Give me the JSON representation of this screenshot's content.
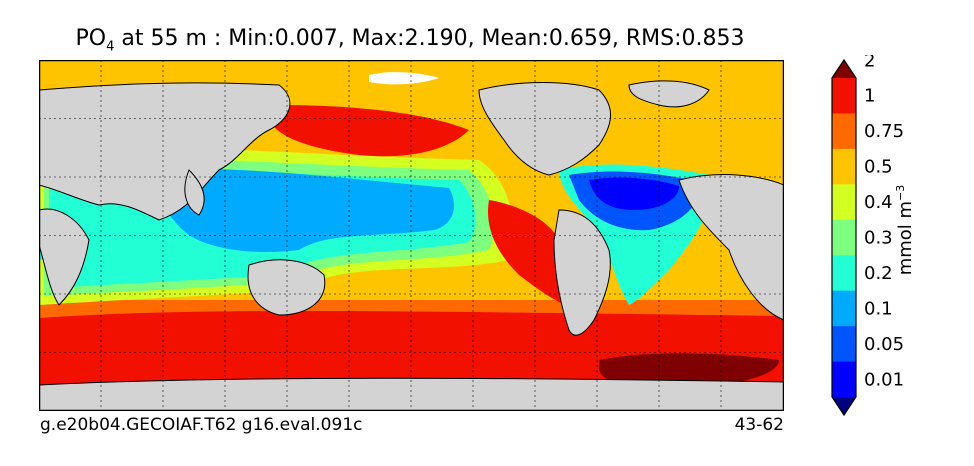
{
  "title": {
    "variable_main": "PO",
    "variable_sub": "4",
    "rest": " at 55 m : Min:0.007, Max:2.190, Mean:0.659, RMS:0.853"
  },
  "footer": {
    "case_name": "g.e20b04.GECOIAF.T62 g16.eval.091c",
    "years": "43-62"
  },
  "colorbar": {
    "unit_main": "mmol m",
    "unit_sup": "−3",
    "levels": [
      "0.01",
      "0.05",
      "0.1",
      "0.2",
      "0.3",
      "0.4",
      "0.5",
      "0.75",
      "1",
      "2"
    ],
    "colors": [
      "#00007f",
      "#0000ff",
      "#0055ff",
      "#00aaff",
      "#22ffd4",
      "#7fff7f",
      "#d4ff22",
      "#ffc400",
      "#ff6a00",
      "#f21000",
      "#7f0000"
    ]
  },
  "map": {
    "land_color": "#d3d3d3",
    "nodata_color": "#ffffff",
    "grid": "dashed"
  }
}
